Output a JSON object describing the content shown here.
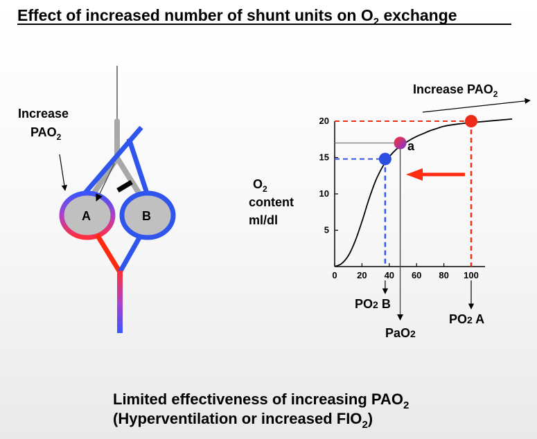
{
  "title": {
    "main": "Effect of increased number of shunt units on O",
    "sub": "2",
    "end": " exchange"
  },
  "left_diagram": {
    "increase_label": {
      "line1": "Increase",
      "line2_main": "PAO",
      "line2_sub": "2"
    },
    "alveolus_a": "A",
    "alveolus_b": "B"
  },
  "graph": {
    "increase_pao2": {
      "main": "Increase PAO",
      "sub": "2"
    },
    "ylabel": {
      "o": "O",
      "sub": "2",
      "line2": "content",
      "line3": "ml/dl"
    },
    "point_a_label": "a",
    "po2b": {
      "main": "PO",
      "sub": "2",
      "end": " B"
    },
    "pao2": {
      "main": "PaO",
      "sub": "2"
    },
    "po2a": {
      "main": "PO",
      "sub": "2",
      "end": " A"
    }
  },
  "chart_data": {
    "type": "line",
    "title": "",
    "xlabel": "",
    "ylabel": "O2 content ml/dl",
    "xlim": [
      0,
      100
    ],
    "ylim": [
      0,
      20
    ],
    "x_ticks": [
      0,
      20,
      40,
      60,
      80,
      100
    ],
    "y_ticks": [
      5,
      10,
      15,
      20
    ],
    "x_tick_labels": [
      "0",
      "20",
      "40",
      "60",
      "80",
      "100"
    ],
    "y_tick_labels": [
      "5",
      "10",
      "15",
      "20"
    ],
    "curve": {
      "x": [
        0,
        5,
        10,
        15,
        20,
        25,
        30,
        35,
        40,
        45,
        50,
        55,
        60,
        65,
        70,
        75,
        80,
        90,
        100,
        130
      ],
      "y": [
        0,
        0.4,
        1.5,
        3.5,
        6.2,
        9.2,
        11.8,
        13.7,
        15.1,
        16.1,
        16.8,
        17.4,
        17.9,
        18.3,
        18.7,
        19.0,
        19.3,
        19.6,
        19.8,
        20.3
      ]
    },
    "points": [
      {
        "name": "PO2 B",
        "x": 37,
        "y": 14.8,
        "color": "#2b4fe0"
      },
      {
        "name": "a",
        "x": 48,
        "y": 17.0,
        "color": "#c23a8a"
      },
      {
        "name": "PO2 A",
        "x": 100,
        "y": 20.0,
        "color": "#ee2a18"
      }
    ]
  },
  "bottom_text": {
    "line1_main": "Limited effectiveness of increasing PAO",
    "line1_sub": "2",
    "line2_main": "(Hyperventilation or increased FIO",
    "line2_sub": "2",
    "line2_end": ")"
  },
  "colors": {
    "blue": "#2f55ec",
    "red": "#ff2a10",
    "gray_alveolus": "#c0c0c0",
    "dashed_red": "#ff2a10",
    "dashed_blue": "#2f55ec"
  }
}
